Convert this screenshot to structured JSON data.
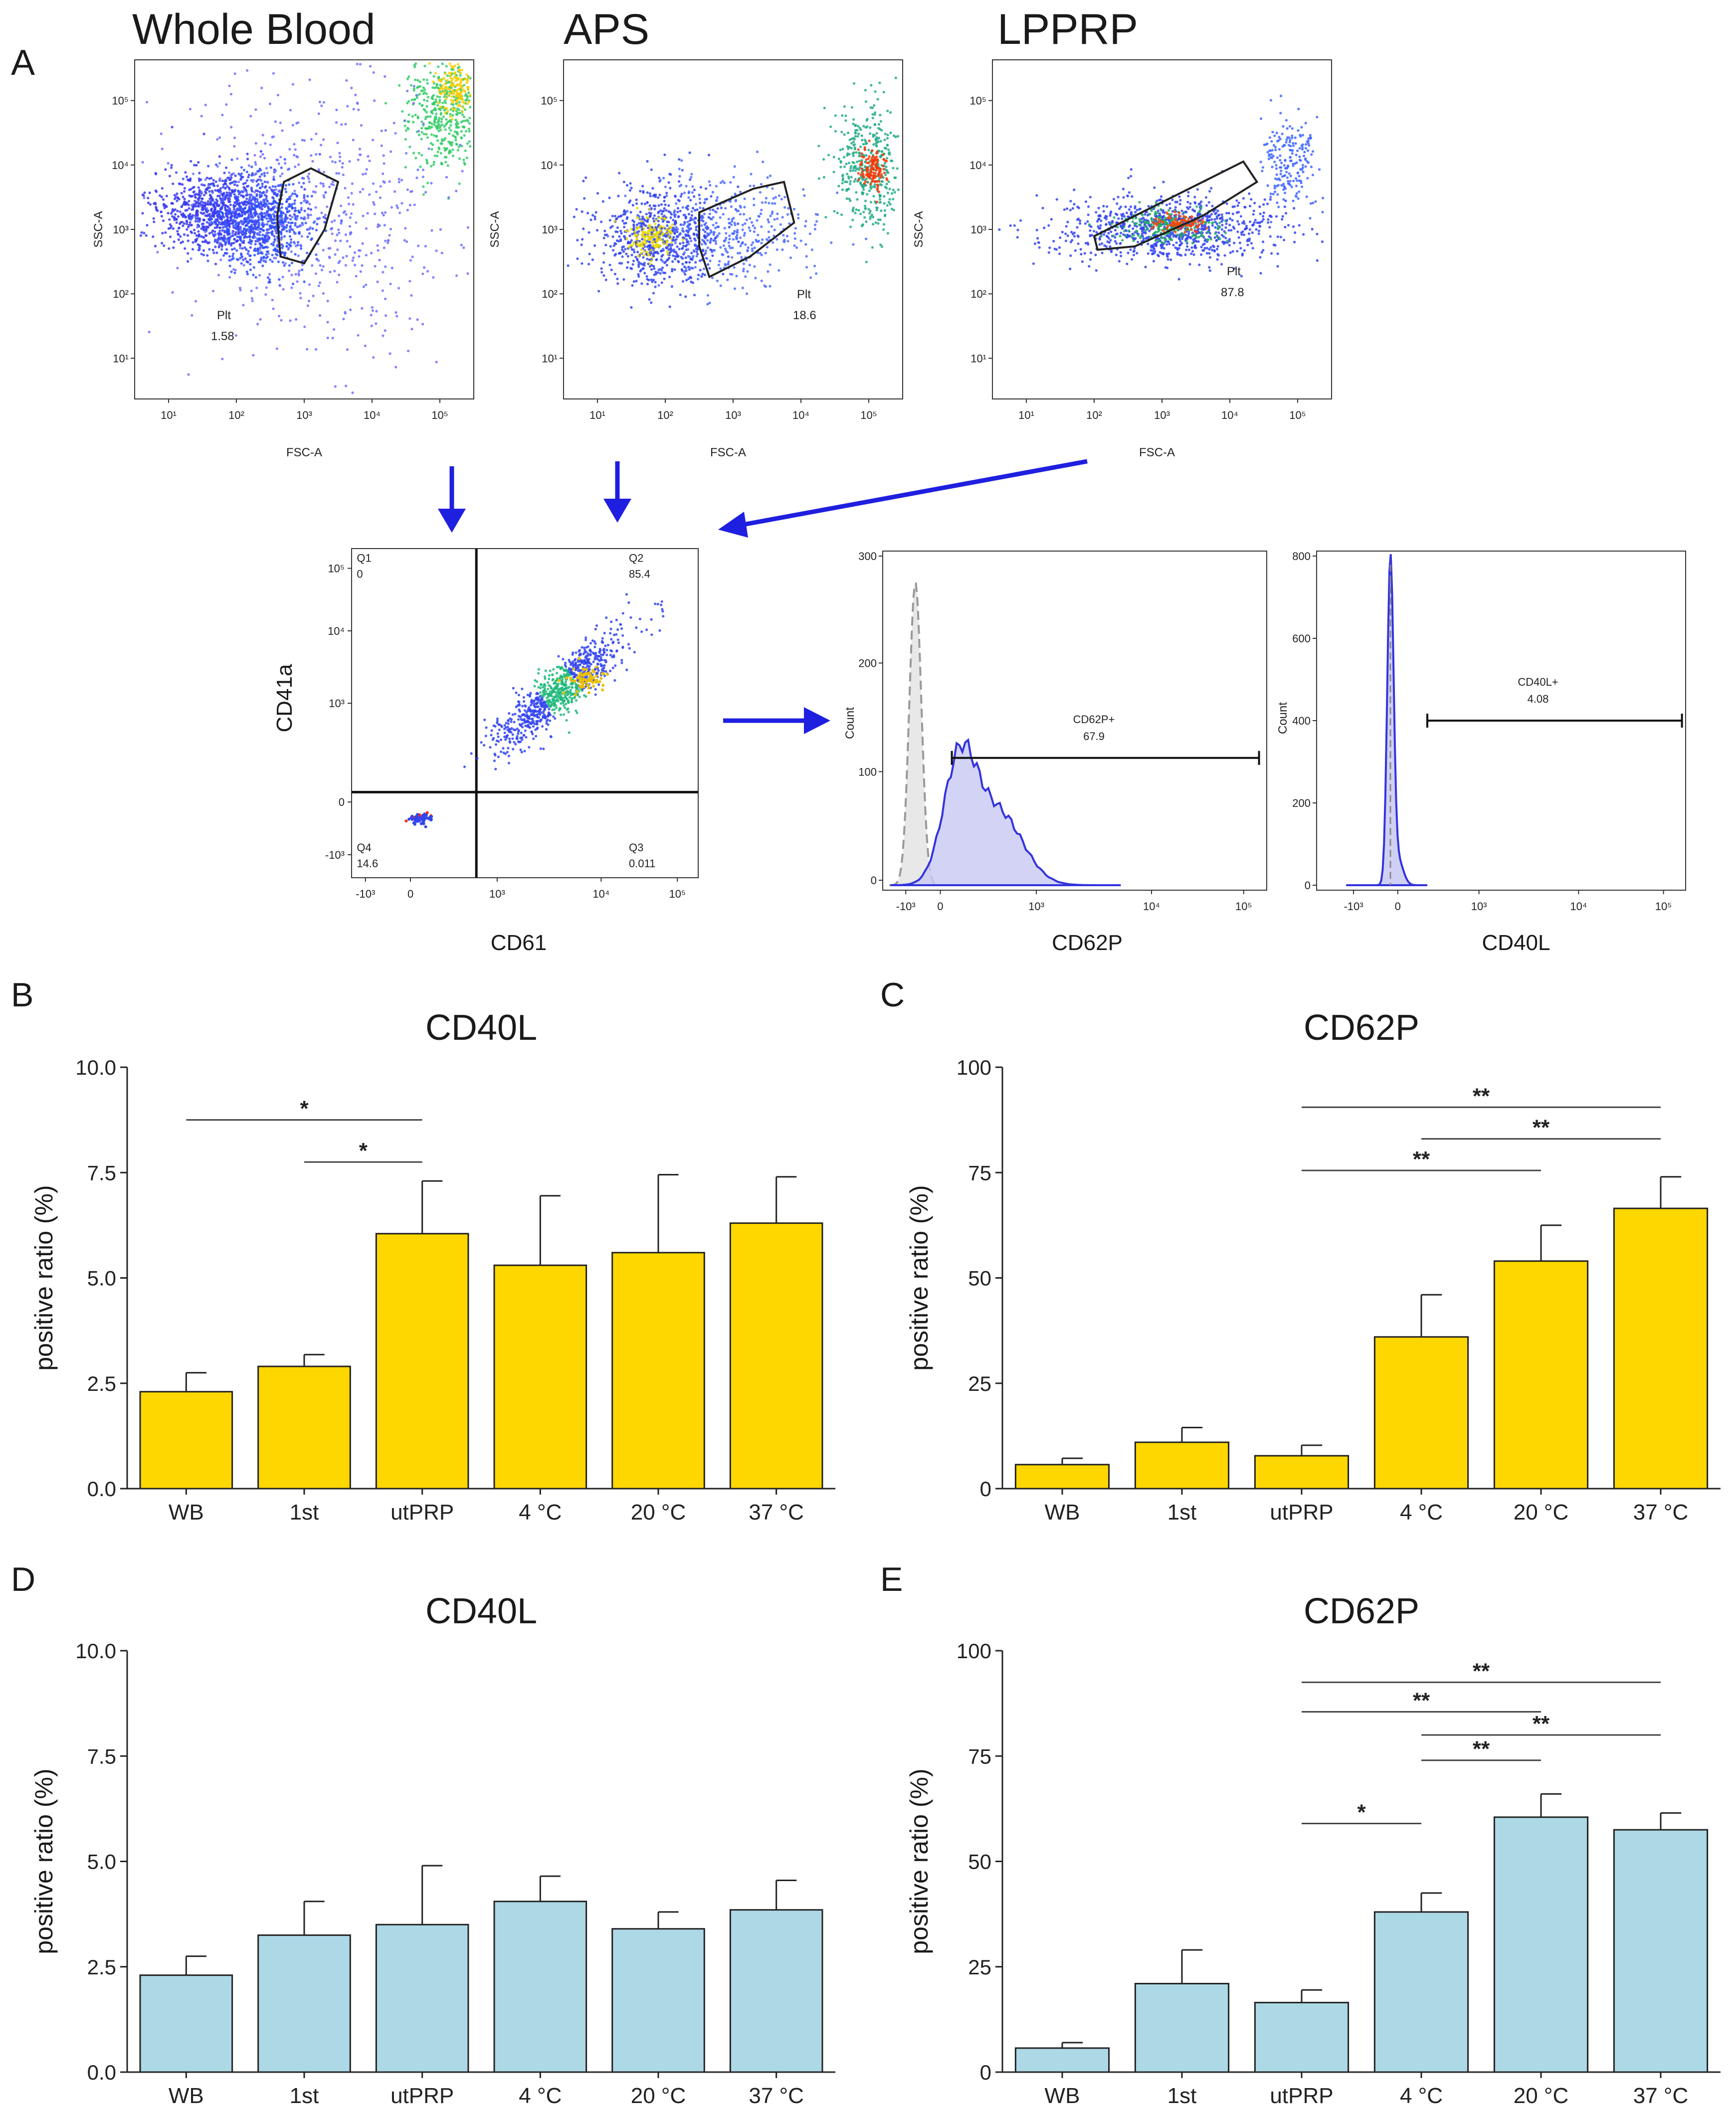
{
  "colors": {
    "arrow": "#1f1fe0",
    "bar_yellow": "#ffd700",
    "bar_blue": "#add8e6",
    "hist_fill": "#c8c8f2",
    "hist_line": "#3333dd",
    "iso_fill": "#e8e8e8",
    "star": "#2a0a10"
  },
  "panel_a": {
    "letter": "A",
    "scatter_plots": [
      {
        "title": "Whole Blood",
        "gate_name": "Plt",
        "gate_value": "1.58",
        "xlabel": "FSC-A",
        "ylabel": "SSC-A"
      },
      {
        "title": "APS",
        "gate_name": "Plt",
        "gate_value": "18.6",
        "xlabel": "FSC-A",
        "ylabel": "SSC-A"
      },
      {
        "title": "LPPRP",
        "gate_name": "Plt",
        "gate_value": "87.8",
        "xlabel": "FSC-A",
        "ylabel": "SSC-A"
      }
    ],
    "scatter_yticks": [
      "10¹",
      "10²",
      "10³",
      "10⁴",
      "10⁵"
    ],
    "scatter_xticks": [
      "10¹",
      "10²",
      "10³",
      "10⁴",
      "10⁵"
    ],
    "quadrant": {
      "xlabel": "CD61",
      "ylabel": "CD41a",
      "quadrants": [
        {
          "name": "Q1",
          "value": "0"
        },
        {
          "name": "Q2",
          "value": "85.4"
        },
        {
          "name": "Q3",
          "value": "0.011"
        },
        {
          "name": "Q4",
          "value": "14.6"
        }
      ],
      "yticks": [
        "10⁵",
        "10⁴",
        "10³",
        "0",
        "-10³"
      ],
      "xticks": [
        "-10³",
        "0",
        "10³",
        "10⁴",
        "10⁵"
      ]
    },
    "histograms": [
      {
        "xlabel": "CD62P",
        "ylabel": "Count",
        "gate_name": "CD62P+",
        "gate_value": "67.9",
        "yticks": [
          "0",
          "100",
          "200",
          "300"
        ],
        "xticks": [
          "-10³",
          "0",
          "10³",
          "10⁴",
          "10⁵"
        ]
      },
      {
        "xlabel": "CD40L",
        "ylabel": "Count",
        "gate_name": "CD40L+",
        "gate_value": "4.08",
        "yticks": [
          "0",
          "200",
          "400",
          "600",
          "800"
        ],
        "xticks": [
          "-10³",
          "0",
          "10³",
          "10⁴",
          "10⁵"
        ]
      }
    ]
  },
  "chart_data": [
    {
      "panel": "B",
      "type": "bar",
      "title": "CD40L",
      "ylabel": "positive ratio (%)",
      "categories": [
        "WB",
        "1st",
        "utPRP",
        "4 °C",
        "20 °C",
        "37 °C"
      ],
      "values": [
        2.3,
        2.9,
        6.05,
        5.3,
        5.6,
        6.3
      ],
      "errors": [
        0.45,
        0.28,
        1.25,
        1.65,
        1.85,
        1.1
      ],
      "ylim": [
        0,
        10
      ],
      "yticks": [
        "0.0",
        "2.5",
        "5.0",
        "7.5",
        "10.0"
      ],
      "ytick_values": [
        0,
        2.5,
        5,
        7.5,
        10
      ],
      "color": "#ffd700",
      "significance": [
        {
          "from": 0,
          "to": 2,
          "y": 8.75,
          "label": "*"
        },
        {
          "from": 1,
          "to": 2,
          "y": 7.75,
          "label": "*"
        }
      ]
    },
    {
      "panel": "C",
      "type": "bar",
      "title": "CD62P",
      "ylabel": "positive ratio (%)",
      "categories": [
        "WB",
        "1st",
        "utPRP",
        "4 °C",
        "20 °C",
        "37 °C"
      ],
      "values": [
        5.7,
        11.0,
        7.8,
        36.0,
        54.0,
        66.5
      ],
      "errors": [
        1.5,
        3.5,
        2.5,
        10.0,
        8.5,
        7.5
      ],
      "ylim": [
        0,
        100
      ],
      "yticks": [
        "0",
        "25",
        "50",
        "75",
        "100"
      ],
      "ytick_values": [
        0,
        25,
        50,
        75,
        100
      ],
      "color": "#ffd700",
      "significance": [
        {
          "from": 2,
          "to": 5,
          "y": 90.5,
          "label": "**"
        },
        {
          "from": 3,
          "to": 5,
          "y": 83.0,
          "label": "**"
        },
        {
          "from": 2,
          "to": 4,
          "y": 75.5,
          "label": "**"
        }
      ]
    },
    {
      "panel": "D",
      "type": "bar",
      "title": "CD40L",
      "ylabel": "positive ratio (%)",
      "categories": [
        "WB",
        "1st",
        "utPRP",
        "4 °C",
        "20 °C",
        "37 °C"
      ],
      "values": [
        2.3,
        3.25,
        3.5,
        4.05,
        3.4,
        3.85
      ],
      "errors": [
        0.45,
        0.8,
        1.4,
        0.6,
        0.4,
        0.7
      ],
      "ylim": [
        0,
        10
      ],
      "yticks": [
        "0.0",
        "2.5",
        "5.0",
        "7.5",
        "10.0"
      ],
      "ytick_values": [
        0,
        2.5,
        5,
        7.5,
        10
      ],
      "color": "#add8e6",
      "significance": []
    },
    {
      "panel": "E",
      "type": "bar",
      "title": "CD62P",
      "ylabel": "positive ratio (%)",
      "categories": [
        "WB",
        "1st",
        "utPRP",
        "4 °C",
        "20 °C",
        "37 °C"
      ],
      "values": [
        5.7,
        21.0,
        16.5,
        38.0,
        60.5,
        57.5
      ],
      "errors": [
        1.3,
        8.0,
        3.0,
        4.5,
        5.5,
        4.0
      ],
      "ylim": [
        0,
        100
      ],
      "yticks": [
        "0",
        "25",
        "50",
        "75",
        "100"
      ],
      "ytick_values": [
        0,
        25,
        50,
        75,
        100
      ],
      "color": "#add8e6",
      "significance": [
        {
          "from": 2,
          "to": 5,
          "y": 92.5,
          "label": "**"
        },
        {
          "from": 2,
          "to": 4,
          "y": 85.5,
          "label": "**"
        },
        {
          "from": 3,
          "to": 5,
          "y": 80.0,
          "label": "**"
        },
        {
          "from": 3,
          "to": 4,
          "y": 74.0,
          "label": "**"
        },
        {
          "from": 2,
          "to": 3,
          "y": 59.0,
          "label": "*"
        }
      ]
    }
  ]
}
